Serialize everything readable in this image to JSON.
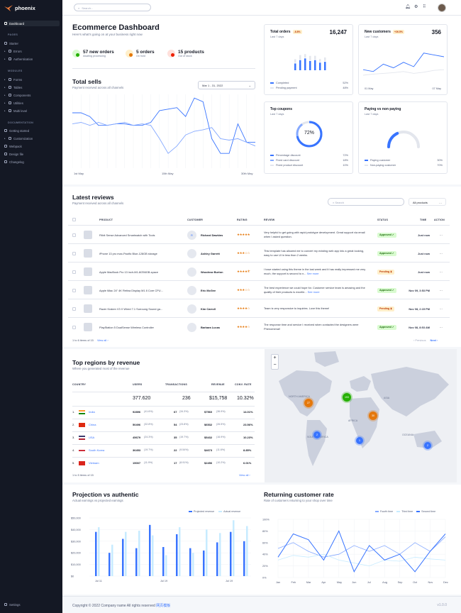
{
  "brand": "phoenix",
  "sidebar": {
    "dashboard": "Dashboard",
    "pages_title": "PAGES",
    "pages": [
      "Starter",
      "Errors",
      "Authentication"
    ],
    "modules_title": "MODULES",
    "modules": [
      "Forms",
      "Tables",
      "Components",
      "Utilities",
      "Multi level"
    ],
    "docs_title": "DOCUMENTATION",
    "docs": [
      "Getting started",
      "Customization",
      "Webpack",
      "Design file",
      "Changelog"
    ],
    "settings": "Settings"
  },
  "search_placeholder": "Search...",
  "dash": {
    "title": "Ecommerce Dashboard",
    "subtitle": "Here's what's going on at your business right now",
    "stats": [
      {
        "value": "57 new orders",
        "label": "Awating processing",
        "color": "#25b003",
        "bg": "#d9fbd0"
      },
      {
        "value": "5 orders",
        "label": "On hold",
        "color": "#e5780b",
        "bg": "#ffefca"
      },
      {
        "value": "15 products",
        "label": "Out of stock",
        "color": "#ed2000",
        "bg": "#ffe0db"
      }
    ]
  },
  "total_sells": {
    "title": "Total sells",
    "subtitle": "Payment received across all channels",
    "date": "Mar 1 - 31, 2022",
    "x_labels": [
      "1st May",
      "15th May",
      "30th May"
    ]
  },
  "total_orders": {
    "title": "Total orders",
    "badge": "-6.8%",
    "value": "16,247",
    "sub": "Last 7 days",
    "legend": [
      {
        "name": "Completed",
        "value": "52%",
        "color": "#3874ff"
      },
      {
        "name": "Pending payment",
        "value": "48%",
        "color": "#e3e6ed"
      }
    ]
  },
  "new_customers": {
    "title": "New customers",
    "badge": "+26.5%",
    "value": "356",
    "sub": "Last 7 days",
    "from": "01 May",
    "to": "07 May"
  },
  "top_coupons": {
    "title": "Top coupons",
    "sub": "Last 7 days",
    "center": "72%",
    "legend": [
      {
        "name": "Percentage discount",
        "value": "72%",
        "color": "#3874ff"
      },
      {
        "name": "Fixed card discount",
        "value": "18%",
        "color": "#85a9ff"
      },
      {
        "name": "Fixed product discount",
        "value": "10%",
        "color": "#e3e6ed"
      }
    ]
  },
  "paying": {
    "title": "Paying vs non paying",
    "sub": "Last 7 days",
    "legend": [
      {
        "name": "Paying customer",
        "value": "30%",
        "color": "#3874ff"
      },
      {
        "name": "Non-paying customer",
        "value": "70%",
        "color": "#e3e6ed"
      }
    ]
  },
  "reviews": {
    "title": "Latest reviews",
    "subtitle": "Payment received across all channels",
    "search": "Search",
    "filter": "All products",
    "headers": [
      "PRODUCT",
      "CUSTOMER",
      "RATING",
      "REVIEW",
      "STATUS",
      "TIME",
      "ACTION"
    ],
    "rows": [
      {
        "product": "Fitbit Sense Advanced Smartwatch with Tools",
        "customer": "Richard Dawkins",
        "init": "R",
        "rating": 5,
        "review": "Very helpful to get going with rapid prototype development. Great support via email when I asked question.",
        "status": "Approved",
        "time": "Just now"
      },
      {
        "product": "iPhone 13 pro max-Pacific Blue-128GB storage",
        "customer": "Ashley Garrett",
        "init": "",
        "rating": 3,
        "review": "This template has allowed me to convert my existing web app into a great looking, easy to use UI in less than 2 weeks.",
        "status": "Approved",
        "time": "Just now"
      },
      {
        "product": "Apple MacBook Pro 13 inch-M1-8/256GB-space",
        "customer": "Woodrow Burton",
        "init": "",
        "rating": 4.5,
        "review": "I have started using this theme in the last week and it has really impressed me very much, the support is second to n...",
        "more": "See more",
        "status": "Pending",
        "time": "Just now"
      },
      {
        "product": "Apple iMac 24\" 4K Retina Display M1 8 Core CPU...",
        "customer": "Eric McGee",
        "init": "",
        "rating": 3,
        "review": "The best experience we could hope for. Customer service team is amazing and the quality of their products is excelle...",
        "more": "See more",
        "status": "Approved",
        "time": "Nov 09, 3:53 PM"
      },
      {
        "product": "Razer Kraken V3 X Wired 7.1 Surroung Sound ga...",
        "customer": "Kim Carroll",
        "init": "",
        "rating": 4,
        "review": "Team is very responsive to inquiries. Love this theme!",
        "status": "Pending",
        "time": "Nov 08, 2:15 PM"
      },
      {
        "product": "PlayStation 5 DualSense Wireless Controller",
        "customer": "Barbara Lucas",
        "init": "",
        "rating": 4,
        "review": "The response time and service I received when contacted the designers were Phenomenal!",
        "status": "Approved",
        "time": "Nov 08, 8:53 AM"
      }
    ],
    "footer": "1 to 6 items of 15",
    "view_all": "View all",
    "prev": "Previous",
    "next": "Next"
  },
  "regions": {
    "title": "Top regions by revenue",
    "subtitle": "Where you generated most of the revenue",
    "headers": [
      "COUNTRY",
      "USERS",
      "TRANSACTIONS",
      "REVENUE",
      "CONV. RATE"
    ],
    "totals": [
      "377.620",
      "236",
      "$15,758",
      "10.32%"
    ],
    "rows": [
      {
        "n": "1.",
        "country": "India",
        "users": "92896",
        "up": "(41.6%)",
        "tx": "67",
        "tp": "(34.3%)",
        "rev": "$7560",
        "rp": "(36.9%)",
        "conv": "14.01%"
      },
      {
        "n": "2.",
        "country": "China",
        "users": "50496",
        "up": "(32.8%)",
        "tx": "54",
        "tp": "(23.8%)",
        "rev": "$6532",
        "rp": "(26.5%)",
        "conv": "23.56%"
      },
      {
        "n": "3.",
        "country": "USA",
        "users": "45679",
        "up": "(24.3%)",
        "tx": "35",
        "tp": "(19.7%)",
        "rev": "$5432",
        "rp": "(16.9%)",
        "conv": "10.23%"
      },
      {
        "n": "4.",
        "country": "South Korea",
        "users": "36453",
        "up": "(19.7%)",
        "tx": "22",
        "tp": "(9.54%)",
        "rev": "$4673",
        "rp": "(11.6%)",
        "conv": "8.85%"
      },
      {
        "n": "5.",
        "country": "Vietnam",
        "users": "15007",
        "up": "(11.9%)",
        "tx": "17",
        "tp": "(8.91%)",
        "rev": "$2456",
        "rp": "(10.2%)",
        "conv": "6.01%"
      }
    ],
    "footer": "1 to 5 items of 15",
    "view_all": "View all"
  },
  "map": {
    "labels": [
      "NORTH AMERICA",
      "SOUTH AMERICA",
      "AFRICA",
      "ASIA",
      "OCEANIA"
    ],
    "clusters": [
      "27",
      "193",
      "30",
      "2",
      "1",
      "2"
    ]
  },
  "projection": {
    "title": "Projection vs authentic",
    "subtitle": "Actual earnings vs projected earnings",
    "legend": [
      "Projected revenue",
      "Actual revenue"
    ]
  },
  "returning": {
    "title": "Returning customer rate",
    "subtitle": "Rate of customers returning to your shop over time",
    "legend": [
      "Fourth time",
      "Third time",
      "Second time"
    ]
  },
  "footer": {
    "copyright": "Copyright © 2022 Company name All rights reserved",
    "link": "网页模板",
    "version": "v1.0.0"
  },
  "chart_data": [
    {
      "type": "line",
      "title": "Total sells",
      "series": [
        {
          "values": [
            75,
            75,
            70,
            58,
            58,
            60,
            60,
            58,
            58,
            62,
            78,
            80,
            82,
            70,
            95,
            90,
            40,
            20,
            20,
            60,
            35,
            35
          ]
        },
        {
          "values": [
            60,
            62,
            58,
            62,
            58,
            60,
            62,
            58,
            60,
            58,
            40,
            20,
            30,
            45,
            50,
            52,
            55,
            40,
            38,
            40,
            35,
            30
          ]
        }
      ]
    },
    {
      "type": "bar",
      "title": "Total orders",
      "series": [
        {
          "name": "Completed",
          "values": [
            40,
            60,
            70,
            55,
            60,
            45,
            50
          ]
        },
        {
          "name": "Pending payment",
          "values": [
            25,
            30,
            25,
            30,
            25,
            20,
            25
          ]
        }
      ]
    },
    {
      "type": "line",
      "title": "New customers",
      "series": [
        {
          "values": [
            40,
            35,
            55,
            45,
            60,
            48,
            85,
            80,
            75
          ]
        },
        {
          "values": [
            25,
            28,
            30,
            32,
            35,
            30,
            33,
            38,
            40
          ]
        }
      ]
    },
    {
      "type": "bar",
      "title": "Projection vs authentic",
      "y_ticks": [
        "$50,000",
        "$40,000",
        "$30,000",
        "$20,000",
        "$10,000",
        "$0"
      ],
      "x_ticks": [
        "Jul 11",
        "Jul 19",
        "Jul 19"
      ],
      "series": [
        {
          "name": "Projected revenue",
          "values": [
            38000,
            20000,
            32000,
            24000,
            44000,
            25000,
            36000,
            24000,
            22000,
            29000,
            38000,
            30000
          ]
        },
        {
          "name": "Actual revenue",
          "values": [
            42000,
            27000,
            38000,
            39000,
            35000,
            18000,
            42000,
            20000,
            40000,
            37000,
            48000,
            43000
          ]
        }
      ]
    },
    {
      "type": "line",
      "title": "Returning customer rate",
      "y_ticks": [
        "100%",
        "80%",
        "60%",
        "40%",
        "20%",
        "0%"
      ],
      "x_ticks": [
        "Jan",
        "Feb",
        "Mar",
        "Apr",
        "May",
        "Jun",
        "Jul",
        "Aug",
        "Sep",
        "Oct",
        "Nov",
        "Dec"
      ],
      "series": [
        {
          "name": "Fourth time",
          "values": [
            50,
            60,
            45,
            35,
            40,
            55,
            45,
            55,
            40,
            60,
            45,
            70
          ]
        },
        {
          "name": "Third time",
          "values": [
            30,
            38,
            35,
            40,
            30,
            25,
            20,
            30,
            28,
            35,
            32,
            30
          ]
        },
        {
          "name": "Second time",
          "values": [
            35,
            75,
            65,
            30,
            80,
            10,
            55,
            30,
            40,
            10,
            45,
            75
          ]
        }
      ]
    }
  ]
}
